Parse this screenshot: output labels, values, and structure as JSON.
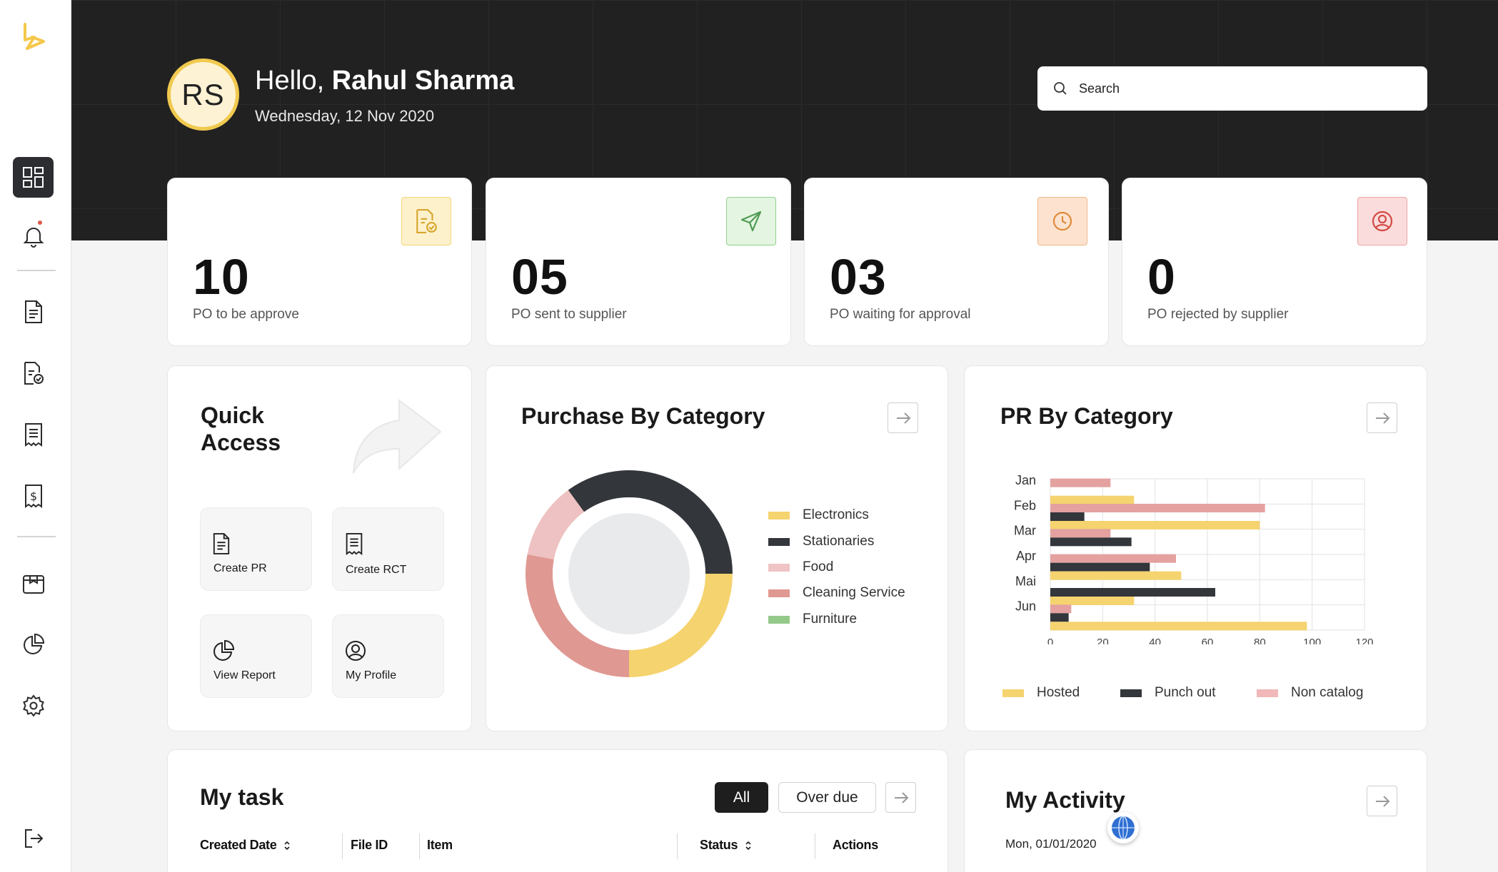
{
  "header": {
    "avatar_initials": "RS",
    "greeting": "Hello,",
    "user_name": "Rahul Sharma",
    "date": "Wednesday, 12 Nov 2020",
    "search_placeholder": "Search"
  },
  "sidebar": {
    "items": [
      {
        "icon": "dashboard-icon",
        "active": true
      },
      {
        "icon": "bell-icon",
        "has_notification": true
      },
      {
        "icon": "document-icon"
      },
      {
        "icon": "document-check-icon"
      },
      {
        "icon": "receipt-icon"
      },
      {
        "icon": "invoice-dollar-icon"
      },
      {
        "icon": "package-icon"
      },
      {
        "icon": "pie-chart-icon"
      },
      {
        "icon": "settings-icon"
      },
      {
        "icon": "logout-icon"
      }
    ]
  },
  "stats": [
    {
      "value": "10",
      "label": "PO to be approve",
      "icon": "document-check-icon",
      "color": "#f5c84b"
    },
    {
      "value": "05",
      "label": "PO sent to supplier",
      "icon": "send-icon",
      "color": "#6fbf73"
    },
    {
      "value": "03",
      "label": "PO waiting for approval",
      "icon": "clock-icon",
      "color": "#ef9a4a"
    },
    {
      "value": "0",
      "label": "PO rejected by supplier",
      "icon": "user-circle-icon",
      "color": "#d9534f"
    }
  ],
  "quick_access": {
    "title": "Quick Access",
    "items": [
      {
        "label": "Create PR",
        "icon": "document-icon"
      },
      {
        "label": "Create RCT",
        "icon": "receipt-icon"
      },
      {
        "label": "View Report",
        "icon": "pie-chart-icon"
      },
      {
        "label": "My Profile",
        "icon": "user-circle-icon"
      }
    ]
  },
  "purchase_by_category": {
    "title": "Purchase By Category",
    "legend": [
      {
        "name": "Electronics",
        "color": "#f5d36f"
      },
      {
        "name": "Stationaries",
        "color": "#33363b"
      },
      {
        "name": "Food",
        "color": "#f0c4c4"
      },
      {
        "name": "Cleaning Service",
        "color": "#e09892"
      },
      {
        "name": "Furniture",
        "color": "#94c98a"
      }
    ]
  },
  "pr_by_category": {
    "title": "PR By Category",
    "legend": [
      {
        "name": "Hosted",
        "color": "#f5d36f"
      },
      {
        "name": "Punch out",
        "color": "#33363b"
      },
      {
        "name": "Non catalog",
        "color": "#f0b8b8"
      }
    ]
  },
  "chart_data": [
    {
      "type": "pie",
      "title": "Purchase By Category",
      "categories": [
        "Electronics",
        "Stationaries",
        "Food",
        "Cleaning Service",
        "Furniture"
      ],
      "values": [
        25,
        35,
        12,
        28,
        0
      ],
      "colors": [
        "#f5d36f",
        "#33363b",
        "#eec2c2",
        "#e09892",
        "#94c98a"
      ]
    },
    {
      "type": "bar",
      "orientation": "horizontal",
      "title": "PR By Category",
      "categories": [
        "Jan",
        "Feb",
        "Mar",
        "Apr",
        "Mai",
        "Jun"
      ],
      "series": [
        {
          "name": "Non catalog",
          "values": [
            23,
            82,
            23,
            48,
            0,
            8
          ],
          "color": "#e4a1a0"
        },
        {
          "name": "Punch out",
          "values": [
            0,
            13,
            31,
            38,
            63,
            7
          ],
          "color": "#33363b"
        },
        {
          "name": "Hosted",
          "values": [
            32,
            80,
            0,
            50,
            32,
            98
          ],
          "color": "#f5d36f"
        }
      ],
      "xlim": [
        0,
        120
      ],
      "xticks": [
        0,
        20,
        40,
        60,
        80,
        100,
        120
      ],
      "legend_position": "bottom",
      "grid": true
    }
  ],
  "tasks": {
    "title": "My task",
    "tabs": [
      "All",
      "Over due"
    ],
    "active_tab": "All",
    "columns": [
      "Created Date",
      "File ID",
      "Item",
      "Status",
      "Actions"
    ]
  },
  "activity": {
    "title": "My Activity",
    "first_date": "Mon, 01/01/2020"
  }
}
